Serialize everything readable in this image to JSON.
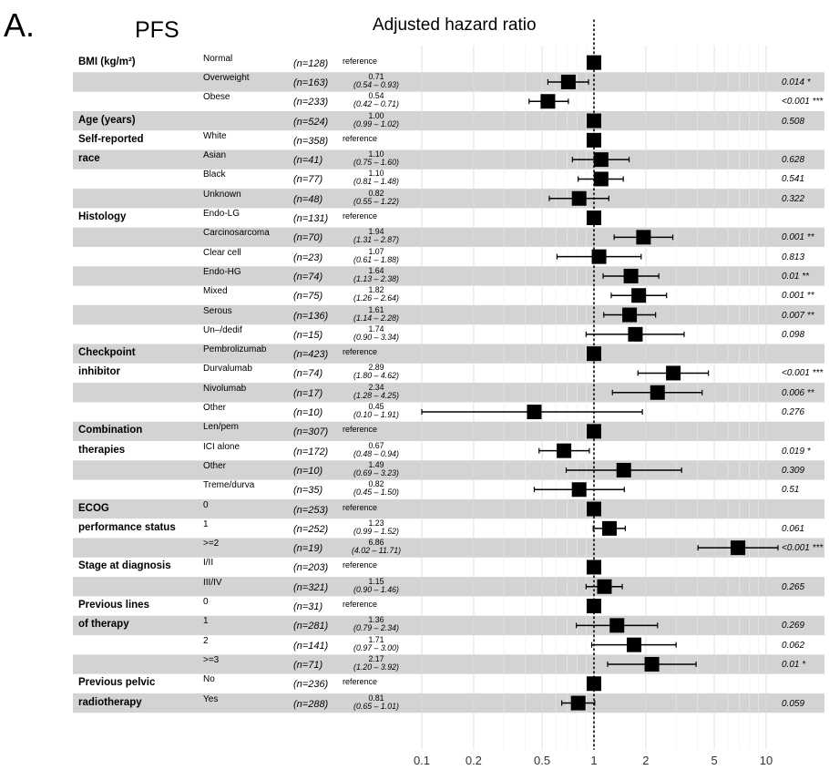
{
  "panel_label": "A.",
  "outcome": "PFS",
  "chart_data": {
    "type": "forest",
    "title": "Adjusted hazard ratio",
    "x_scale": "log",
    "xlim": [
      0.1,
      14
    ],
    "reference_line": 1,
    "x_ticks": [
      0.1,
      0.2,
      0.5,
      1,
      2,
      5,
      10
    ],
    "x_tick_labels": [
      "0.1",
      "0.2",
      "0.5",
      "1",
      "2",
      "5",
      "10"
    ],
    "rows": [
      {
        "var": "BMI (kg/m²)",
        "level": "Normal",
        "n": "(n=128)",
        "ref": true,
        "hr": 1,
        "hr_text": "reference",
        "ci_text": "",
        "p": ""
      },
      {
        "var": "",
        "level": "Overweight",
        "n": "(n=163)",
        "ref": false,
        "hr": 0.71,
        "lo": 0.54,
        "hi": 0.93,
        "hr_text": "0.71",
        "ci_text": "(0.54 – 0.93)",
        "p": "0.014 *"
      },
      {
        "var": "",
        "level": "Obese",
        "n": "(n=233)",
        "ref": false,
        "hr": 0.54,
        "lo": 0.42,
        "hi": 0.71,
        "hr_text": "0.54",
        "ci_text": "(0.42 – 0.71)",
        "p": "<0.001 ***"
      },
      {
        "var": "Age (years)",
        "level": "",
        "n": "(n=524)",
        "ref": false,
        "hr": 1.0,
        "lo": 0.99,
        "hi": 1.02,
        "hr_text": "1.00",
        "ci_text": "(0.99 – 1.02)",
        "p": "0.508"
      },
      {
        "var": "Self-reported",
        "level": "White",
        "n": "(n=358)",
        "ref": true,
        "hr": 1,
        "hr_text": "reference",
        "ci_text": "",
        "p": ""
      },
      {
        "var": "race",
        "level": "Asian",
        "n": "(n=41)",
        "ref": false,
        "hr": 1.1,
        "lo": 0.75,
        "hi": 1.6,
        "hr_text": "1.10",
        "ci_text": "(0.75 – 1.60)",
        "p": "0.628"
      },
      {
        "var": "",
        "level": "Black",
        "n": "(n=77)",
        "ref": false,
        "hr": 1.1,
        "lo": 0.81,
        "hi": 1.48,
        "hr_text": "1.10",
        "ci_text": "(0.81 – 1.48)",
        "p": "0.541"
      },
      {
        "var": "",
        "level": "Unknown",
        "n": "(n=48)",
        "ref": false,
        "hr": 0.82,
        "lo": 0.55,
        "hi": 1.22,
        "hr_text": "0.82",
        "ci_text": "(0.55 – 1.22)",
        "p": "0.322"
      },
      {
        "var": "Histology",
        "level": "Endo-LG",
        "n": "(n=131)",
        "ref": true,
        "hr": 1,
        "hr_text": "reference",
        "ci_text": "",
        "p": ""
      },
      {
        "var": "",
        "level": "Carcinosarcoma",
        "n": "(n=70)",
        "ref": false,
        "hr": 1.94,
        "lo": 1.31,
        "hi": 2.87,
        "hr_text": "1.94",
        "ci_text": "(1.31 – 2.87)",
        "p": "0.001 **"
      },
      {
        "var": "",
        "level": "Clear cell",
        "n": "(n=23)",
        "ref": false,
        "hr": 1.07,
        "lo": 0.61,
        "hi": 1.88,
        "hr_text": "1.07",
        "ci_text": "(0.61 – 1.88)",
        "p": "0.813"
      },
      {
        "var": "",
        "level": "Endo-HG",
        "n": "(n=74)",
        "ref": false,
        "hr": 1.64,
        "lo": 1.13,
        "hi": 2.38,
        "hr_text": "1.64",
        "ci_text": "(1.13 – 2.38)",
        "p": "0.01 **"
      },
      {
        "var": "",
        "level": "Mixed",
        "n": "(n=75)",
        "ref": false,
        "hr": 1.82,
        "lo": 1.26,
        "hi": 2.64,
        "hr_text": "1.82",
        "ci_text": "(1.26 – 2.64)",
        "p": "0.001 **"
      },
      {
        "var": "",
        "level": "Serous",
        "n": "(n=136)",
        "ref": false,
        "hr": 1.61,
        "lo": 1.14,
        "hi": 2.28,
        "hr_text": "1.61",
        "ci_text": "(1.14 – 2.28)",
        "p": "0.007 **"
      },
      {
        "var": "",
        "level": "Un–/dedif",
        "n": "(n=15)",
        "ref": false,
        "hr": 1.74,
        "lo": 0.9,
        "hi": 3.34,
        "hr_text": "1.74",
        "ci_text": "(0.90 – 3.34)",
        "p": "0.098"
      },
      {
        "var": "Checkpoint",
        "level": "Pembrolizumab",
        "n": "(n=423)",
        "ref": true,
        "hr": 1,
        "hr_text": "reference",
        "ci_text": "",
        "p": ""
      },
      {
        "var": "inhibitor",
        "level": "Durvalumab",
        "n": "(n=74)",
        "ref": false,
        "hr": 2.89,
        "lo": 1.8,
        "hi": 4.62,
        "hr_text": "2.89",
        "ci_text": "(1.80 – 4.62)",
        "p": "<0.001 ***"
      },
      {
        "var": "",
        "level": "Nivolumab",
        "n": "(n=17)",
        "ref": false,
        "hr": 2.34,
        "lo": 1.28,
        "hi": 4.25,
        "hr_text": "2.34",
        "ci_text": "(1.28 – 4.25)",
        "p": "0.006 **"
      },
      {
        "var": "",
        "level": "Other",
        "n": "(n=10)",
        "ref": false,
        "hr": 0.45,
        "lo": 0.1,
        "hi": 1.91,
        "hr_text": "0.45",
        "ci_text": "(0.10 – 1.91)",
        "p": "0.276"
      },
      {
        "var": "Combination",
        "level": "Len/pem",
        "n": "(n=307)",
        "ref": true,
        "hr": 1,
        "hr_text": "reference",
        "ci_text": "",
        "p": ""
      },
      {
        "var": "therapies",
        "level": "ICI alone",
        "n": "(n=172)",
        "ref": false,
        "hr": 0.67,
        "lo": 0.48,
        "hi": 0.94,
        "hr_text": "0.67",
        "ci_text": "(0.48 – 0.94)",
        "p": "0.019 *"
      },
      {
        "var": "",
        "level": "Other",
        "n": "(n=10)",
        "ref": false,
        "hr": 1.49,
        "lo": 0.69,
        "hi": 3.23,
        "hr_text": "1.49",
        "ci_text": "(0.69 – 3.23)",
        "p": "0.309"
      },
      {
        "var": "",
        "level": "Treme/durva",
        "n": "(n=35)",
        "ref": false,
        "hr": 0.82,
        "lo": 0.45,
        "hi": 1.5,
        "hr_text": "0.82",
        "ci_text": "(0.45 – 1.50)",
        "p": "0.51"
      },
      {
        "var": "ECOG",
        "level": "0",
        "n": "(n=253)",
        "ref": true,
        "hr": 1,
        "hr_text": "reference",
        "ci_text": "",
        "p": ""
      },
      {
        "var": "performance status",
        "level": "1",
        "n": "(n=252)",
        "ref": false,
        "hr": 1.23,
        "lo": 0.99,
        "hi": 1.52,
        "hr_text": "1.23",
        "ci_text": "(0.99 – 1.52)",
        "p": "0.061"
      },
      {
        "var": "",
        "level": ">=2",
        "n": "(n=19)",
        "ref": false,
        "hr": 6.86,
        "lo": 4.02,
        "hi": 11.71,
        "hr_text": "6.86",
        "ci_text": "(4.02 – 11.71)",
        "p": "<0.001 ***"
      },
      {
        "var": "Stage at diagnosis",
        "level": "I/II",
        "n": "(n=203)",
        "ref": true,
        "hr": 1,
        "hr_text": "reference",
        "ci_text": "",
        "p": ""
      },
      {
        "var": "",
        "level": "III/IV",
        "n": "(n=321)",
        "ref": false,
        "hr": 1.15,
        "lo": 0.9,
        "hi": 1.46,
        "hr_text": "1.15",
        "ci_text": "(0.90 – 1.46)",
        "p": "0.265"
      },
      {
        "var": "Previous lines",
        "level": "0",
        "n": "(n=31)",
        "ref": true,
        "hr": 1,
        "hr_text": "reference",
        "ci_text": "",
        "p": ""
      },
      {
        "var": "of therapy",
        "level": "1",
        "n": "(n=281)",
        "ref": false,
        "hr": 1.36,
        "lo": 0.79,
        "hi": 2.34,
        "hr_text": "1.36",
        "ci_text": "(0.79 – 2.34)",
        "p": "0.269"
      },
      {
        "var": "",
        "level": "2",
        "n": "(n=141)",
        "ref": false,
        "hr": 1.71,
        "lo": 0.97,
        "hi": 3.0,
        "hr_text": "1.71",
        "ci_text": "(0.97 – 3.00)",
        "p": "0.062"
      },
      {
        "var": "",
        "level": ">=3",
        "n": "(n=71)",
        "ref": false,
        "hr": 2.17,
        "lo": 1.2,
        "hi": 3.92,
        "hr_text": "2.17",
        "ci_text": "(1.20 – 3.92)",
        "p": "0.01 *"
      },
      {
        "var": "Previous pelvic",
        "level": "No",
        "n": "(n=236)",
        "ref": true,
        "hr": 1,
        "hr_text": "reference",
        "ci_text": "",
        "p": ""
      },
      {
        "var": "radiotherapy",
        "level": "Yes",
        "n": "(n=288)",
        "ref": false,
        "hr": 0.81,
        "lo": 0.65,
        "hi": 1.01,
        "hr_text": "0.81",
        "ci_text": "(0.65 – 1.01)",
        "p": "0.059"
      }
    ],
    "colors": {
      "band": "#d3d3d3",
      "marker": "#000000",
      "grid": "#e6e6e6",
      "reference_line": "#000000"
    }
  }
}
